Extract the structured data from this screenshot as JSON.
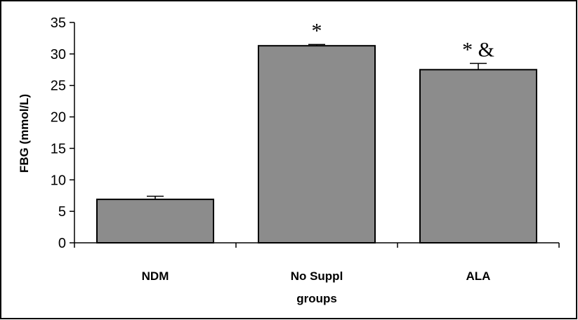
{
  "chart_data": {
    "type": "bar",
    "title": "",
    "categories": [
      "NDM",
      "No Suppl",
      "ALA"
    ],
    "values": [
      6.9,
      31.3,
      27.5
    ],
    "errors": [
      0.5,
      0.2,
      1.0
    ],
    "annotations": [
      "",
      "*",
      "* &"
    ],
    "xlabel": "groups",
    "ylabel": "FBG (mmol/L)",
    "ylim": [
      0,
      35
    ],
    "yticks": [
      0,
      5,
      10,
      15,
      20,
      25,
      30,
      35
    ],
    "grid": false,
    "legend": "none",
    "colors": {
      "bar_fill": "#8c8c8c",
      "bar_stroke": "#000000",
      "axis": "#000000",
      "frame": "#000000"
    }
  }
}
